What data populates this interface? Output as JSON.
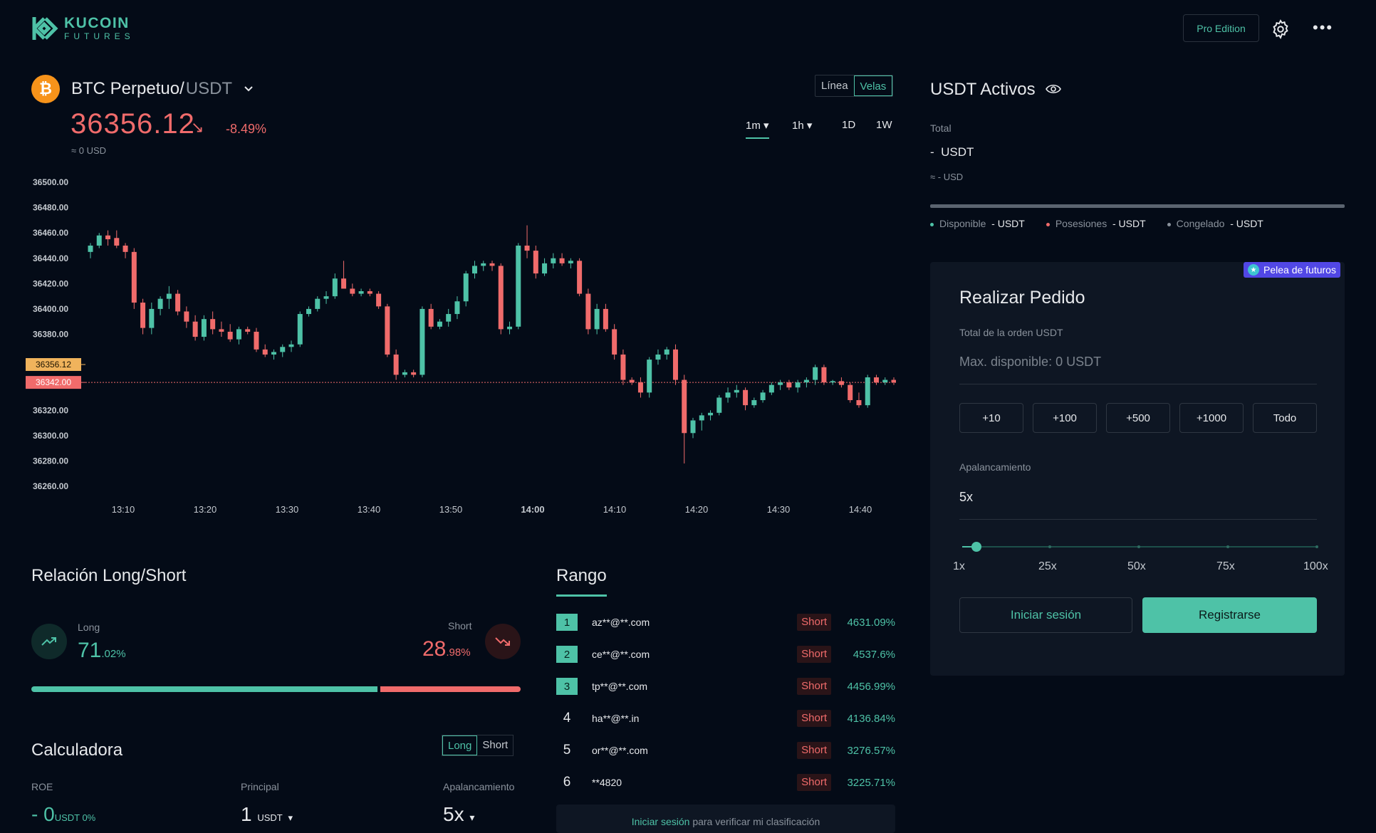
{
  "header": {
    "logo_main": "KUCOIN",
    "logo_sub": "FUTURES",
    "pro_edition": "Pro Edition"
  },
  "ticker": {
    "pair_base": "BTC Perpetuo/",
    "pair_quote": "USDT",
    "price": "36356.12",
    "price_arrow": "↘",
    "change": "-8.49%",
    "usd_value": "≈ 0 USD",
    "view_line": "Línea",
    "view_candles": "Velas",
    "timeframes": [
      "1m",
      "1h",
      "1D",
      "1W"
    ]
  },
  "chart_data": {
    "type": "candlestick",
    "y_ticks": [
      "36500.00",
      "36480.00",
      "36460.00",
      "36440.00",
      "36420.00",
      "36400.00",
      "36380.00",
      "36356.12",
      "36342.00",
      "36320.00",
      "36300.00",
      "36280.00",
      "36260.00"
    ],
    "x_ticks": [
      "13:10",
      "13:20",
      "13:30",
      "13:40",
      "13:50",
      "14:00",
      "14:10",
      "14:20",
      "14:30",
      "14:40"
    ],
    "ylim": [
      36260,
      36500
    ],
    "current_price_label": "36356.12",
    "last_price_label": "36342.00",
    "candles": [
      [
        36445,
        36452,
        36440,
        36450
      ],
      [
        36450,
        36460,
        36448,
        36458
      ],
      [
        36458,
        36462,
        36450,
        36455
      ],
      [
        36456,
        36462,
        36448,
        36450
      ],
      [
        36450,
        36452,
        36440,
        36445
      ],
      [
        36445,
        36448,
        36400,
        36405
      ],
      [
        36405,
        36408,
        36380,
        36385
      ],
      [
        36385,
        36405,
        36380,
        36400
      ],
      [
        36400,
        36410,
        36395,
        36408
      ],
      [
        36408,
        36418,
        36400,
        36412
      ],
      [
        36412,
        36415,
        36395,
        36398
      ],
      [
        36398,
        36402,
        36385,
        36390
      ],
      [
        36390,
        36395,
        36375,
        36378
      ],
      [
        36378,
        36395,
        36375,
        36392
      ],
      [
        36392,
        36398,
        36380,
        36384
      ],
      [
        36384,
        36390,
        36378,
        36382
      ],
      [
        36382,
        36388,
        36374,
        36376
      ],
      [
        36376,
        36386,
        36372,
        36384
      ],
      [
        36384,
        36386,
        36380,
        36382
      ],
      [
        36382,
        36385,
        36366,
        36368
      ],
      [
        36368,
        36372,
        36362,
        36364
      ],
      [
        36364,
        36368,
        36360,
        36366
      ],
      [
        36366,
        36372,
        36362,
        36370
      ],
      [
        36370,
        36375,
        36366,
        36372
      ],
      [
        36372,
        36398,
        36370,
        36396
      ],
      [
        36396,
        36402,
        36394,
        36400
      ],
      [
        36400,
        36410,
        36398,
        36408
      ],
      [
        36408,
        36414,
        36404,
        36410
      ],
      [
        36410,
        36428,
        36408,
        36424
      ],
      [
        36424,
        36438,
        36418,
        36416
      ],
      [
        36416,
        36420,
        36410,
        36412
      ],
      [
        36412,
        36416,
        36410,
        36414
      ],
      [
        36414,
        36416,
        36410,
        36412
      ],
      [
        36412,
        36414,
        36400,
        36402
      ],
      [
        36402,
        36404,
        36362,
        36364
      ],
      [
        36364,
        36368,
        36344,
        36348
      ],
      [
        36348,
        36352,
        36346,
        36350
      ],
      [
        36350,
        36352,
        36346,
        36348
      ],
      [
        36348,
        36402,
        36346,
        36400
      ],
      [
        36400,
        36404,
        36384,
        36386
      ],
      [
        36386,
        36392,
        36384,
        36390
      ],
      [
        36390,
        36400,
        36386,
        36396
      ],
      [
        36396,
        36410,
        36392,
        36406
      ],
      [
        36406,
        36430,
        36402,
        36428
      ],
      [
        36428,
        36438,
        36424,
        36434
      ],
      [
        36434,
        36438,
        36430,
        36436
      ],
      [
        36436,
        36438,
        36430,
        36434
      ],
      [
        36434,
        36436,
        36380,
        36384
      ],
      [
        36384,
        36390,
        36380,
        36386
      ],
      [
        36386,
        36452,
        36384,
        36450
      ],
      [
        36450,
        36466,
        36440,
        36446
      ],
      [
        36446,
        36450,
        36424,
        36428
      ],
      [
        36428,
        36440,
        36426,
        36436
      ],
      [
        36436,
        36444,
        36432,
        36440
      ],
      [
        36440,
        36444,
        36434,
        36436
      ],
      [
        36436,
        36440,
        36432,
        36438
      ],
      [
        36438,
        36440,
        36410,
        36412
      ],
      [
        36412,
        36416,
        36380,
        36384
      ],
      [
        36384,
        36404,
        36380,
        36400
      ],
      [
        36400,
        36404,
        36382,
        36384
      ],
      [
        36384,
        36388,
        36360,
        36364
      ],
      [
        36364,
        36368,
        36340,
        36344
      ],
      [
        36344,
        36346,
        36340,
        36342
      ],
      [
        36342,
        36346,
        36330,
        36334
      ],
      [
        36334,
        36362,
        36330,
        36360
      ],
      [
        36360,
        36368,
        36356,
        36364
      ],
      [
        36364,
        36370,
        36360,
        36368
      ],
      [
        36368,
        36372,
        36340,
        36344
      ],
      [
        36344,
        36348,
        36278,
        36302
      ],
      [
        36302,
        36314,
        36298,
        36312
      ],
      [
        36312,
        36318,
        36304,
        36316
      ],
      [
        36316,
        36320,
        36312,
        36318
      ],
      [
        36318,
        36332,
        36316,
        36330
      ],
      [
        36330,
        36338,
        36326,
        36334
      ],
      [
        36334,
        36340,
        36330,
        36336
      ],
      [
        36336,
        36338,
        36320,
        36324
      ],
      [
        36324,
        36330,
        36322,
        36328
      ],
      [
        36328,
        36336,
        36326,
        36334
      ],
      [
        36334,
        36342,
        36332,
        36340
      ],
      [
        36340,
        36344,
        36336,
        36342
      ],
      [
        36342,
        36344,
        36336,
        36338
      ],
      [
        36338,
        36344,
        36334,
        36342
      ],
      [
        36342,
        36346,
        36338,
        36344
      ],
      [
        36344,
        36356,
        36340,
        36354
      ],
      [
        36354,
        36356,
        36340,
        36342
      ],
      [
        36342,
        36344,
        36340,
        36343
      ],
      [
        36343,
        36346,
        36338,
        36340
      ],
      [
        36340,
        36342,
        36326,
        36328
      ],
      [
        36328,
        36334,
        36322,
        36324
      ],
      [
        36324,
        36348,
        36322,
        36346
      ],
      [
        36346,
        36348,
        36340,
        36342
      ],
      [
        36342,
        36346,
        36340,
        36344
      ],
      [
        36344,
        36346,
        36340,
        36342
      ]
    ]
  },
  "assets": {
    "title": "USDT Activos",
    "total_label": "Total",
    "total_dash": "-",
    "total_unit": "USDT",
    "total_usd": "≈ - USD",
    "legend": [
      {
        "label": "Disponible",
        "value": "- USDT",
        "color": "#4ec2a7"
      },
      {
        "label": "Posesiones",
        "value": "- USDT",
        "color": "#f06b6b"
      },
      {
        "label": "Congelado",
        "value": "- USDT",
        "color": "#8a929c"
      }
    ]
  },
  "order": {
    "tag": "Pelea de futuros",
    "title": "Realizar Pedido",
    "total_label": "Total de la orden USDT",
    "placeholder": "Max. disponible: 0 USDT",
    "quick": [
      "+10",
      "+100",
      "+500",
      "+1000",
      "Todo"
    ],
    "leverage_label": "Apalancamiento",
    "leverage_value": "5x",
    "slider_labels": [
      "1x",
      "25x",
      "50x",
      "75x",
      "100x"
    ],
    "leverage_fraction": 0.04,
    "login": "Iniciar sesión",
    "register": "Registrarse"
  },
  "long_short": {
    "title": "Relación Long/Short",
    "long_label": "Long",
    "long_int": "71",
    "long_dec": ".02%",
    "short_label": "Short",
    "short_int": "28",
    "short_dec": ".98%",
    "long_pct": 71.02,
    "short_pct": 28.98
  },
  "calculator": {
    "title": "Calculadora",
    "toggle_long": "Long",
    "toggle_short": "Short",
    "roe_label": "ROE",
    "roe_value": "- 0",
    "roe_unit": "USDT 0%",
    "principal_label": "Principal",
    "principal_value": "1",
    "principal_unit": "USDT",
    "leverage_label": "Apalancamiento",
    "leverage_value": "5x"
  },
  "ranking": {
    "title": "Rango",
    "rows": [
      {
        "rank": "1",
        "email": "az**@**.com",
        "side": "Short",
        "pct": "4631.09%"
      },
      {
        "rank": "2",
        "email": "ce**@**.com",
        "side": "Short",
        "pct": "4537.6%"
      },
      {
        "rank": "3",
        "email": "tp**@**.com",
        "side": "Short",
        "pct": "4456.99%"
      },
      {
        "rank": "4",
        "email": "ha**@**.in",
        "side": "Short",
        "pct": "4136.84%"
      },
      {
        "rank": "5",
        "email": "or**@**.com",
        "side": "Short",
        "pct": "3276.57%"
      },
      {
        "rank": "6",
        "email": "**4820",
        "side": "Short",
        "pct": "3225.71%"
      }
    ],
    "footer_link": "Iniciar sesión",
    "footer_text": "para verificar mi clasificación"
  }
}
